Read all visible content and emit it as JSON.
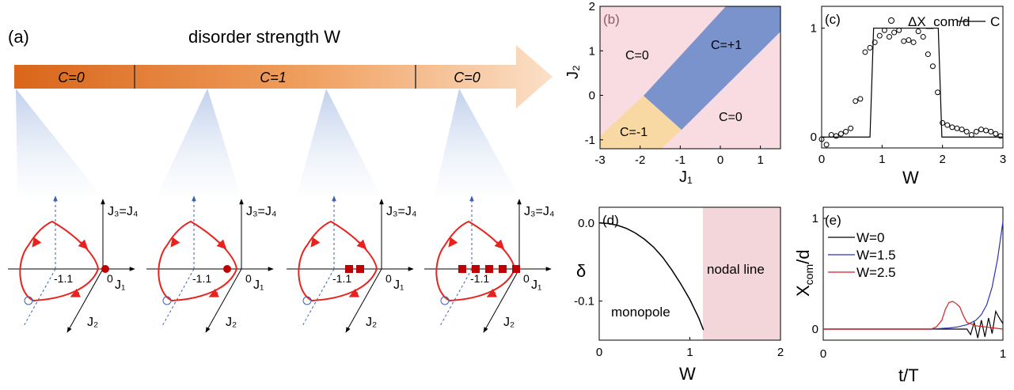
{
  "panel_a": {
    "label": "(a)",
    "heading": "disorder strength W",
    "segments": [
      "C=0",
      "C=1",
      "C=0"
    ],
    "axis_labels": {
      "vertical": "J₃=J₄",
      "horizontal": "J₁",
      "depth": "J₂"
    },
    "tick_labels": [
      "-1.1",
      "0"
    ],
    "marker_counts": [
      1,
      1,
      2,
      5
    ]
  },
  "chart_data": [
    {
      "panel": "(b)",
      "type": "heatmap",
      "xlabel": "J₁",
      "ylabel": "J₂",
      "xlim": [
        -3,
        1.5
      ],
      "ylim": [
        -1.2,
        2
      ],
      "xticks": [
        "-3",
        "-2",
        "-1",
        "0",
        "1"
      ],
      "yticks": [
        "-1",
        "0",
        "1",
        "2"
      ],
      "regions": [
        {
          "label": "C=0",
          "color": "#f9dce2"
        },
        {
          "label": "C=+1",
          "color": "#7b93cc"
        },
        {
          "label": "C=-1",
          "color": "#f8d9a3"
        },
        {
          "label": "C=0",
          "color": "#f9dce2"
        }
      ]
    },
    {
      "panel": "(c)",
      "type": "line",
      "xlabel": "W",
      "xlim": [
        0,
        3
      ],
      "ylim": [
        -0.1,
        1.2
      ],
      "xticks": [
        "0",
        "1",
        "2",
        "3"
      ],
      "yticks": [
        "0",
        "1"
      ],
      "legend": "top",
      "series": [
        {
          "name": "ΔX_com/d",
          "style": "markers",
          "x": [
            0,
            0.08,
            0.16,
            0.24,
            0.32,
            0.4,
            0.48,
            0.56,
            0.64,
            0.72,
            0.8,
            0.88,
            0.96,
            1.04,
            1.12,
            1.2,
            1.28,
            1.36,
            1.44,
            1.52,
            1.6,
            1.68,
            1.76,
            1.84,
            1.92,
            2.0,
            2.08,
            2.16,
            2.24,
            2.32,
            2.4,
            2.48,
            2.56,
            2.64,
            2.72,
            2.8,
            2.88,
            2.96
          ],
          "y": [
            -0.02,
            -0.07,
            0.02,
            0.01,
            0.03,
            0.05,
            0.08,
            0.33,
            0.35,
            0.78,
            0.82,
            0.87,
            0.93,
            0.98,
            0.92,
            0.96,
            0.98,
            0.88,
            0.89,
            0.87,
            0.97,
            0.92,
            0.76,
            0.65,
            0.41,
            0.13,
            0.11,
            0.09,
            0.08,
            0.07,
            0.05,
            0.02,
            0.05,
            0.07,
            0.06,
            0.05,
            0.03,
            0.01
          ]
        },
        {
          "name": "C",
          "style": "line",
          "x": [
            0,
            0.8,
            0.86,
            1.93,
            1.99,
            3
          ],
          "y": [
            0,
            0,
            1,
            1,
            0,
            0
          ]
        }
      ]
    },
    {
      "panel": "(d)",
      "type": "line",
      "xlabel": "W",
      "ylabel": "δ",
      "xlim": [
        0,
        2
      ],
      "ylim": [
        -0.15,
        0.02
      ],
      "xticks": [
        "0",
        "1",
        "2"
      ],
      "yticks": [
        "0.0",
        "-0.1"
      ],
      "shaded_region": {
        "label": "nodal line",
        "from": 1.15,
        "to": 2,
        "color": "#f3d6da"
      },
      "annotations": [
        "monopole"
      ],
      "series": [
        {
          "x": [
            0,
            0.1,
            0.2,
            0.3,
            0.4,
            0.5,
            0.6,
            0.7,
            0.8,
            0.9,
            1.0,
            1.1,
            1.15
          ],
          "y": [
            0,
            -0.0008,
            -0.003,
            -0.007,
            -0.013,
            -0.021,
            -0.031,
            -0.044,
            -0.06,
            -0.078,
            -0.098,
            -0.122,
            -0.137
          ]
        }
      ]
    },
    {
      "panel": "(e)",
      "type": "line",
      "xlabel": "t/T",
      "ylabel": "X_com/d",
      "xlim": [
        0,
        1
      ],
      "ylim": [
        -0.1,
        1.1
      ],
      "xticks": [
        "0",
        "1"
      ],
      "yticks": [
        "0",
        "1"
      ],
      "legend": "top-left",
      "series": [
        {
          "name": "W=0",
          "color": "#000000",
          "x": [
            0,
            0.5,
            0.8,
            0.82,
            0.84,
            0.86,
            0.88,
            0.9,
            0.92,
            0.94,
            0.96,
            0.98,
            1.0
          ],
          "y": [
            0,
            0,
            0,
            -0.05,
            0.06,
            -0.08,
            0.08,
            -0.07,
            0.1,
            -0.04,
            0.16,
            0.1,
            0.05
          ]
        },
        {
          "name": "W=1.5",
          "color": "#2b35b5",
          "x": [
            0,
            0.6,
            0.7,
            0.75,
            0.8,
            0.85,
            0.88,
            0.91,
            0.94,
            0.97,
            1.0
          ],
          "y": [
            0,
            0,
            0.01,
            0.02,
            0.04,
            0.08,
            0.13,
            0.22,
            0.38,
            0.63,
            0.97
          ]
        },
        {
          "name": "W=2.5",
          "color": "#d42020",
          "x": [
            0,
            0.6,
            0.63,
            0.66,
            0.68,
            0.7,
            0.72,
            0.74,
            0.76,
            0.78,
            0.8,
            0.85,
            0.9,
            0.95,
            1.0
          ],
          "y": [
            0,
            0,
            0.02,
            0.08,
            0.18,
            0.24,
            0.25,
            0.23,
            0.2,
            0.12,
            0.06,
            0.03,
            0.02,
            0.01,
            0
          ]
        }
      ]
    }
  ]
}
